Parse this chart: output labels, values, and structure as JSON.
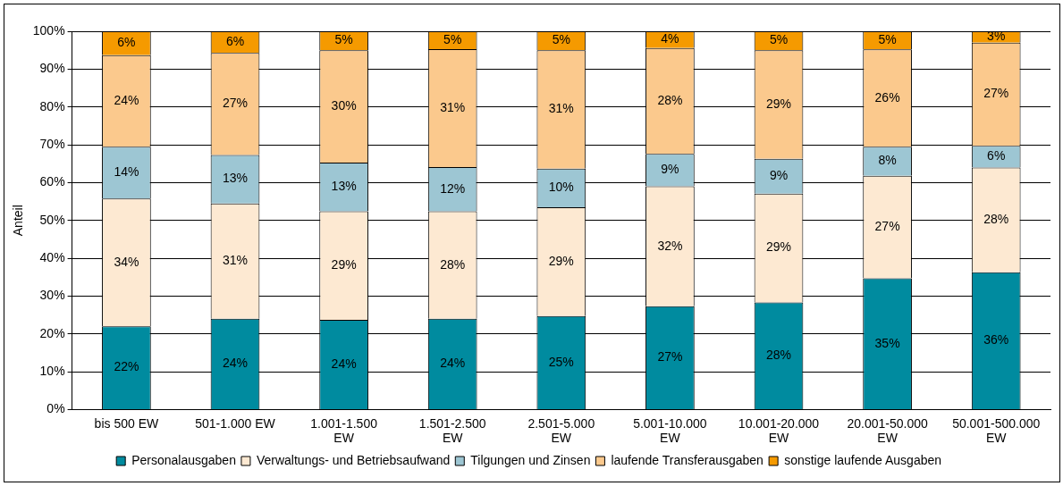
{
  "chart_data": {
    "type": "bar",
    "stacked": true,
    "ylabel": "Anteil",
    "categories": [
      "bis 500 EW",
      "501-1.000 EW",
      "1.001-1.500 EW",
      "1.501-2.500 EW",
      "2.501-5.000 EW",
      "5.001-10.000 EW",
      "10.001-20.000 EW",
      "20.001-50.000 EW",
      "50.001-500.000 EW"
    ],
    "series": [
      {
        "name": "Personalausgaben",
        "color": "#008b9f",
        "values": [
          22,
          24,
          23.7,
          24,
          24.7,
          27.3,
          28.3,
          34.7,
          36.3
        ],
        "value_labels": [
          "22%",
          "24%",
          "24%",
          "24%",
          "25%",
          "27%",
          "28%",
          "35%",
          "36%"
        ]
      },
      {
        "name": "Verwaltungs- und Betriebsaufwand",
        "color": "#fde9d2",
        "values": [
          33.8,
          30.5,
          28.7,
          28.4,
          28.8,
          31.7,
          28.8,
          27.1,
          27.7
        ],
        "value_labels": [
          "34%",
          "31%",
          "29%",
          "28%",
          "29%",
          "32%",
          "29%",
          "27%",
          "28%"
        ]
      },
      {
        "name": "Tilgungen und Zinsen",
        "color": "#9dc6d3",
        "values": [
          13.7,
          12.8,
          12.9,
          11.7,
          10.2,
          8.6,
          9.2,
          7.7,
          5.7
        ],
        "value_labels": [
          "14%",
          "13%",
          "13%",
          "12%",
          "10%",
          "9%",
          "9%",
          "8%",
          "6%"
        ]
      },
      {
        "name": "laufende Transferausgaben",
        "color": "#fbc98d",
        "values": [
          24.2,
          27,
          29.7,
          31.2,
          31.3,
          28,
          28.7,
          25.7,
          27.3
        ],
        "value_labels": [
          "24%",
          "27%",
          "30%",
          "31%",
          "31%",
          "28%",
          "29%",
          "26%",
          "27%"
        ]
      },
      {
        "name": "sonstige laufende Ausgaben",
        "color": "#f59a00",
        "values": [
          6.3,
          5.7,
          5,
          4.7,
          5,
          4.4,
          5,
          4.8,
          3
        ],
        "value_labels": [
          "6%",
          "6%",
          "5%",
          "5%",
          "5%",
          "4%",
          "5%",
          "5%",
          "3%"
        ]
      }
    ],
    "ylim": [
      0,
      100
    ],
    "yticks": [
      {
        "value": 0,
        "label": "0%"
      },
      {
        "value": 10,
        "label": "10%"
      },
      {
        "value": 20,
        "label": "20%"
      },
      {
        "value": 30,
        "label": "30%"
      },
      {
        "value": 40,
        "label": "40%"
      },
      {
        "value": 50,
        "label": "50%"
      },
      {
        "value": 60,
        "label": "60%"
      },
      {
        "value": 70,
        "label": "70%"
      },
      {
        "value": 80,
        "label": "80%"
      },
      {
        "value": 90,
        "label": "90%"
      },
      {
        "value": 100,
        "label": "100%"
      }
    ],
    "grid": "y",
    "legend": "bottom"
  }
}
